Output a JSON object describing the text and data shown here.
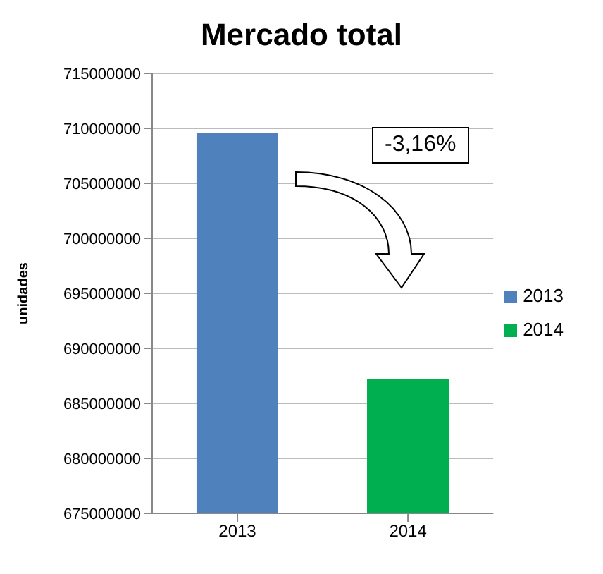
{
  "chart_data": {
    "type": "bar",
    "title": "Mercado total",
    "ylabel": "unidades",
    "categories": [
      "2013",
      "2014"
    ],
    "series": [
      {
        "name": "2013",
        "color": "#4f81bd",
        "values": [
          709600000,
          null
        ]
      },
      {
        "name": "2014",
        "color": "#00b050",
        "values": [
          null,
          687200000
        ]
      }
    ],
    "stacked": true,
    "ylim": [
      675000000,
      715000000
    ],
    "yticks": [
      675000000,
      680000000,
      685000000,
      690000000,
      695000000,
      700000000,
      705000000,
      710000000,
      715000000
    ],
    "grid": "y",
    "legend": "right",
    "annotations": [
      "-3,16%"
    ]
  }
}
